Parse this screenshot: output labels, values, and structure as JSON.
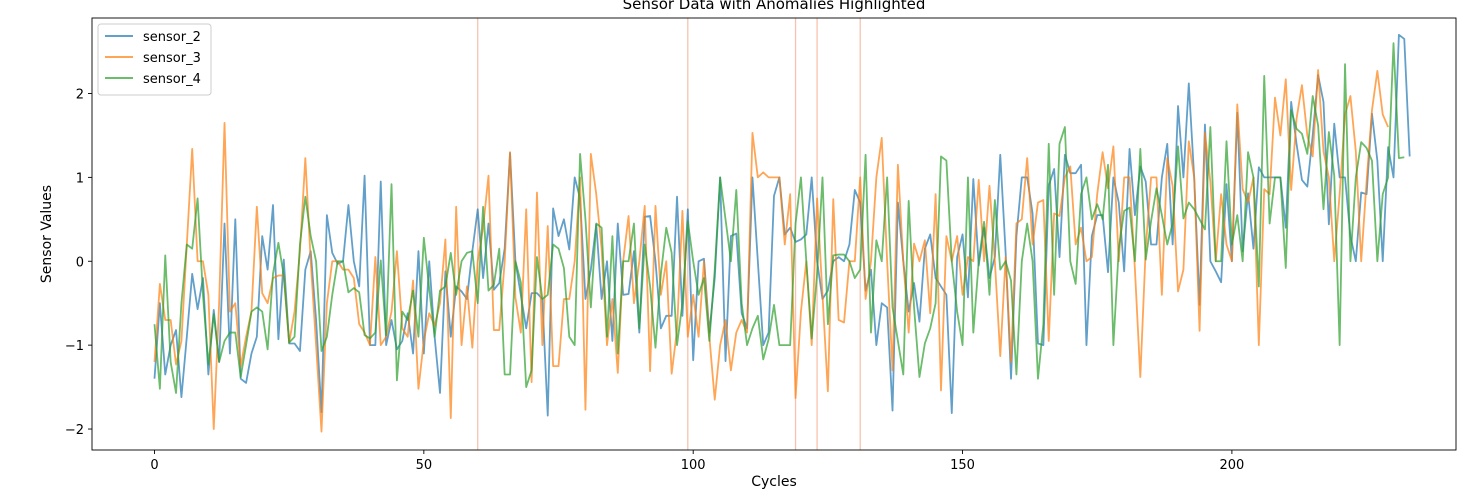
{
  "chart_data": {
    "type": "line",
    "title": "Sensor Data with Anomalies Highlighted",
    "xlabel": "Cycles",
    "ylabel": "Sensor Values",
    "xlim": [
      -11.6,
      241.6
    ],
    "ylim": [
      -2.25,
      2.9
    ],
    "xticks": [
      0,
      50,
      100,
      150,
      200
    ],
    "yticks": [
      -2,
      -1,
      0,
      1,
      2
    ],
    "grid": false,
    "legend_position": "upper-left",
    "anomaly_lines": [
      60,
      99,
      119,
      123,
      131
    ],
    "anomaly_color": "#f4a98b",
    "series": [
      {
        "name": "sensor_2",
        "color": "#1f77b4",
        "values": [
          -1.4,
          -0.5,
          -1.35,
          -1.0,
          -0.82,
          -1.62,
          -0.9,
          -0.15,
          -0.57,
          -0.2,
          -1.35,
          -0.58,
          -1.2,
          0.45,
          -1.1,
          0.5,
          -1.4,
          -1.45,
          -1.1,
          -0.9,
          0.3,
          -0.1,
          0.67,
          -0.93,
          0.02,
          -0.98,
          -0.98,
          -1.07,
          -0.1,
          0.12,
          -0.7,
          -1.8,
          0.55,
          0.1,
          -0.03,
          0.0,
          0.67,
          0.0,
          -0.3,
          1.02,
          -1.0,
          -1.0,
          0.95,
          -1.0,
          -0.7,
          -1.05,
          -0.95,
          -0.62,
          -1.1,
          0.12,
          -1.1,
          0.0,
          -0.9,
          -1.57,
          -0.12,
          -0.9,
          -0.3,
          -0.36,
          -0.45,
          0.12,
          0.62,
          -0.2,
          0.45,
          -0.34,
          -0.26,
          0.15,
          1.29,
          0.0,
          -0.4,
          -0.8,
          -0.38,
          -0.38,
          -0.45,
          -1.84,
          0.63,
          0.3,
          0.5,
          0.14,
          1.0,
          0.75,
          -0.45,
          -0.1,
          0.44,
          -0.45,
          0.0,
          -0.95,
          0.45,
          -0.4,
          -0.39,
          0.12,
          -0.85,
          0.53,
          0.54,
          0.0,
          -0.8,
          -0.65,
          -0.65,
          0.77,
          -0.65,
          0.62,
          -1.18,
          0.0,
          0.03,
          -0.85,
          -0.2,
          1.0,
          -1.19,
          0.3,
          0.33,
          -0.62,
          -0.8,
          1.0,
          0.0,
          -1.0,
          -0.85,
          0.78,
          1.0,
          0.32,
          0.4,
          0.23,
          0.26,
          0.32,
          1.0,
          0.0,
          -0.45,
          -0.35,
          0.0,
          0.05,
          0.0,
          0.2,
          0.85,
          0.7,
          -0.35,
          -0.1,
          -1.0,
          -0.5,
          -0.55,
          -1.78,
          0.7,
          0.0,
          -0.6,
          -0.26,
          -0.72,
          0.15,
          0.32,
          -0.2,
          -0.3,
          -0.4,
          -1.81,
          0.05,
          0.32,
          -0.43,
          0.98,
          -0.05,
          0.4,
          -0.2,
          0.05,
          1.27,
          0.1,
          -1.4,
          0.3,
          1.0,
          1.0,
          0.57,
          -0.98,
          -1.0,
          0.9,
          1.1,
          0.05,
          1.27,
          1.05,
          1.05,
          1.15,
          -1.0,
          0.3,
          0.55,
          0.55,
          -0.13,
          1.0,
          0.7,
          -0.12,
          1.34,
          0.55,
          1.13,
          0.95,
          0.2,
          0.2,
          1.0,
          1.4,
          0.2,
          1.85,
          1.0,
          2.12,
          1.0,
          -0.52,
          1.63,
          0.0,
          -0.12,
          -0.25,
          0.92,
          0.0,
          1.77,
          0.12,
          0.81,
          0.15,
          1.12,
          1.0,
          1.0,
          1.0,
          1.0,
          0.4,
          1.9,
          1.4,
          0.97,
          0.89,
          1.5,
          2.22,
          1.9,
          0.44,
          1.64,
          1.0,
          1.0,
          0.3,
          0.0,
          0.82,
          0.8,
          1.76,
          1.2,
          0.0,
          1.36,
          1.0,
          2.7,
          2.65,
          1.25
        ]
      },
      {
        "name": "sensor_3",
        "color": "#ff7f0e",
        "values": [
          -1.2,
          -0.27,
          -0.7,
          -0.7,
          -1.23,
          -0.95,
          0.2,
          1.34,
          0.0,
          0.0,
          -0.4,
          -2.0,
          -0.5,
          1.65,
          -0.6,
          -0.5,
          -1.25,
          -0.9,
          -0.6,
          0.65,
          -0.38,
          -0.5,
          -0.2,
          -0.17,
          -0.17,
          -0.97,
          -0.6,
          0.12,
          1.23,
          0.0,
          -1.0,
          -2.03,
          -0.5,
          0.0,
          0.0,
          -0.1,
          -0.1,
          -0.2,
          -0.75,
          -0.85,
          -1.0,
          0.05,
          -1.0,
          -0.9,
          -0.6,
          0.12,
          -0.8,
          -0.9,
          -0.23,
          -1.52,
          -0.95,
          -0.62,
          -0.77,
          -0.5,
          0.26,
          -1.87,
          0.65,
          -1.0,
          -0.3,
          -1.03,
          0.0,
          0.4,
          1.02,
          -0.82,
          -0.82,
          -0.01,
          1.3,
          -0.43,
          -0.85,
          0.62,
          -1.44,
          0.82,
          -1.0,
          0.42,
          -1.25,
          -1.25,
          -0.45,
          -0.45,
          0.0,
          1.0,
          -1.77,
          1.28,
          0.8,
          0.15,
          -1.0,
          -0.45,
          -1.33,
          0.0,
          0.54,
          -0.5,
          0.0,
          0.66,
          -1.31,
          0.66,
          -0.4,
          0.0,
          -1.34,
          -0.82,
          0.6,
          -0.9,
          -0.4,
          -0.9,
          0.0,
          -0.9,
          -1.65,
          -1.0,
          -0.7,
          -1.3,
          -0.85,
          -0.7,
          -0.85,
          1.53,
          1.0,
          1.06,
          1.0,
          1.0,
          1.0,
          0.2,
          0.8,
          -1.63,
          -0.6,
          0.0,
          -1.0,
          0.75,
          -0.4,
          -1.55,
          0.74,
          -0.7,
          -0.73,
          0.0,
          0.0,
          1.0,
          -0.45,
          0.0,
          1.0,
          1.47,
          0.0,
          -1.3,
          1.15,
          0.0,
          -0.85,
          0.21,
          0.0,
          0.25,
          -0.62,
          0.8,
          -1.54,
          0.3,
          0.0,
          0.3,
          -0.4,
          0.05,
          0.0,
          0.97,
          0.0,
          0.9,
          0.0,
          -1.13,
          0.05,
          -1.2,
          0.45,
          0.5,
          1.23,
          0.2,
          0.7,
          0.73,
          -0.95,
          0.57,
          0.54,
          1.0,
          1.13,
          0.2,
          0.4,
          0.0,
          0.05,
          0.8,
          1.3,
          0.87,
          1.37,
          0.0,
          1.0,
          1.0,
          -0.1,
          -1.38,
          0.15,
          1.0,
          1.0,
          -0.4,
          1.23,
          0.9,
          -0.36,
          -0.1,
          1.43,
          1.0,
          -0.83,
          1.53,
          0.95,
          0.0,
          0.8,
          0.2,
          0.0,
          1.87,
          0.86,
          0.7,
          1.0,
          -1.0,
          0.86,
          0.8,
          1.95,
          1.5,
          2.17,
          0.85,
          1.7,
          2.1,
          1.5,
          1.25,
          2.28,
          1.31,
          1.0,
          0.0,
          0.8,
          1.75,
          1.97,
          1.31,
          0.0,
          0.95,
          1.8,
          2.27,
          1.75,
          1.6
        ]
      },
      {
        "name": "sensor_4",
        "color": "#2ca02c",
        "values": [
          -0.75,
          -1.52,
          0.07,
          -1.2,
          -1.57,
          -0.5,
          0.2,
          0.15,
          0.75,
          -0.4,
          -1.23,
          -0.63,
          -1.2,
          -0.95,
          -0.85,
          -0.85,
          -1.38,
          -1.0,
          -0.6,
          -0.55,
          -0.6,
          -1.05,
          -0.15,
          0.22,
          -0.17,
          -0.97,
          -0.9,
          0.2,
          0.77,
          0.3,
          0.0,
          -1.07,
          -0.9,
          -0.4,
          0.0,
          0.0,
          -0.37,
          -0.32,
          -0.37,
          -0.88,
          -0.92,
          -0.85,
          0.01,
          -0.88,
          0.92,
          -1.42,
          -0.6,
          -0.7,
          -0.35,
          -0.9,
          0.28,
          -0.33,
          -0.9,
          -0.35,
          -0.3,
          0.1,
          -0.4,
          0.0,
          0.1,
          0.12,
          -0.5,
          0.65,
          -0.35,
          -0.28,
          0.15,
          -1.35,
          -1.35,
          0.0,
          -0.25,
          -1.5,
          -1.3,
          0.05,
          -0.45,
          -0.4,
          0.2,
          0.15,
          -0.08,
          -0.9,
          -1.0,
          1.28,
          0.5,
          -0.55,
          0.45,
          0.4,
          -0.9,
          0.3,
          -1.1,
          0.0,
          0.0,
          0.45,
          -0.8,
          0.2,
          -0.3,
          -1.03,
          -0.15,
          0.4,
          0.1,
          -1.0,
          -0.5,
          0.48,
          0.0,
          -0.4,
          -0.2,
          -0.95,
          -0.1,
          1.0,
          0.5,
          0.0,
          0.85,
          -0.5,
          -1.0,
          -0.8,
          -0.65,
          -1.17,
          -0.93,
          -0.52,
          -1.0,
          -1.0,
          -1.0,
          0.45,
          1.0,
          0.0,
          -0.92,
          -0.15,
          1.0,
          -0.75,
          0.07,
          0.08,
          0.08,
          0.0,
          -0.2,
          -0.1,
          1.27,
          -0.85,
          0.25,
          0.0,
          1.0,
          -0.55,
          -0.95,
          -1.35,
          0.72,
          -0.55,
          -1.38,
          -0.98,
          -0.8,
          -0.5,
          1.25,
          1.2,
          0.0,
          -0.6,
          -1.0,
          1.0,
          -0.85,
          0.0,
          0.47,
          -0.4,
          0.73,
          -0.1,
          0.0,
          -0.23,
          -1.35,
          0.0,
          0.45,
          0.0,
          -1.4,
          -0.75,
          1.4,
          -0.4,
          1.4,
          1.6,
          0.0,
          -0.27,
          0.8,
          1.0,
          0.5,
          0.68,
          0.5,
          1.15,
          -1.0,
          0.15,
          0.6,
          0.64,
          0.0,
          1.34,
          0.02,
          0.48,
          0.87,
          0.55,
          0.2,
          0.45,
          1.37,
          0.51,
          0.7,
          0.62,
          0.5,
          0.38,
          1.6,
          0.0,
          0.0,
          1.43,
          0.2,
          0.55,
          0.0,
          1.3,
          1.0,
          -0.3,
          2.21,
          0.45,
          1.0,
          1.0,
          -0.08,
          1.8,
          1.58,
          1.52,
          1.28,
          1.97,
          1.62,
          0.62,
          1.54,
          1.02,
          -1.0,
          2.35,
          0.0,
          1.0,
          1.42,
          1.35,
          1.2,
          0.0,
          0.8,
          1.0,
          2.6,
          1.23,
          1.24
        ]
      }
    ]
  }
}
